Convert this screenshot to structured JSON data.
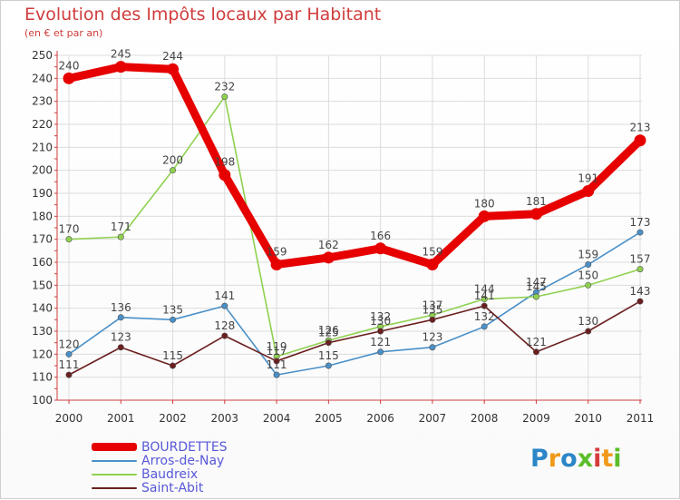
{
  "header": {
    "title": "Evolution des Impôts locaux par Habitant",
    "subtitle": "(en € et par an)"
  },
  "logo": {
    "text": "Proxiti",
    "letters": [
      "P",
      "r",
      "o",
      "x",
      "i",
      "t",
      "i"
    ],
    "colors": [
      "#2a86c7",
      "#f09a1b",
      "#2a86c7",
      "#5bbd2a",
      "#d63a3a",
      "#f09a1b",
      "#5bbd2a"
    ]
  },
  "chart_data": {
    "type": "line",
    "x": [
      2000,
      2001,
      2002,
      2003,
      2004,
      2005,
      2006,
      2007,
      2008,
      2009,
      2010,
      2011
    ],
    "ylim": [
      100,
      250
    ],
    "yticks": [
      100,
      110,
      120,
      130,
      140,
      150,
      160,
      170,
      180,
      190,
      200,
      210,
      220,
      230,
      240,
      250
    ],
    "grid": true,
    "legend_position": "bottom-left",
    "series": [
      {
        "name": "BOURDETTES",
        "color": "#e60000",
        "values": [
          240,
          245,
          244,
          198,
          159,
          162,
          166,
          159,
          180,
          181,
          191,
          213
        ]
      },
      {
        "name": "Arros-de-Nay",
        "color": "#4a90c8",
        "values": [
          120,
          136,
          135,
          141,
          111,
          115,
          121,
          123,
          132,
          147,
          159,
          173
        ]
      },
      {
        "name": "Baudreix",
        "color": "#8fd14f",
        "values": [
          170,
          171,
          200,
          232,
          119,
          126,
          132,
          137,
          144,
          145,
          150,
          157
        ]
      },
      {
        "name": "Saint-Abit",
        "color": "#6b1f1f",
        "values": [
          111,
          123,
          115,
          128,
          117,
          125,
          130,
          135,
          141,
          121,
          130,
          143
        ]
      }
    ]
  }
}
